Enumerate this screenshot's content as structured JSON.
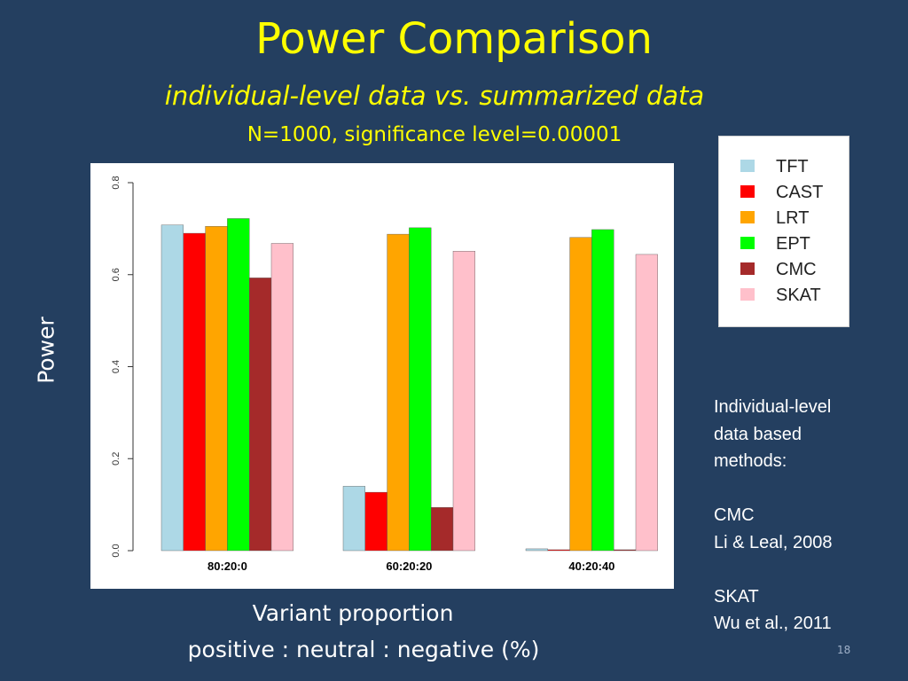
{
  "slide": {
    "title": "Power Comparison",
    "subtitle": "individual-level data vs. summarized data",
    "subtitle2": "N=1000, significance level=0.00001",
    "y_axis_title": "Power",
    "x_axis_title_line1": "Variant proportion",
    "x_axis_title_line2": "positive : neutral : negative (%)",
    "page_number": "18",
    "notes": [
      "Individual-level",
      "data based",
      "methods:",
      "",
      "CMC",
      "Li & Leal, 2008",
      "",
      "SKAT",
      "Wu et al., 2011"
    ]
  },
  "colors": {
    "background": "#243f60",
    "title": "#ffff00",
    "TFT": "#add8e6",
    "CAST": "#ff0000",
    "LRT": "#ffa500",
    "EPT": "#00ff00",
    "CMC": "#a52a2a",
    "SKAT": "#ffc0cb"
  },
  "chart_data": {
    "type": "bar",
    "categories": [
      "80:20:0",
      "60:20:20",
      "40:20:40"
    ],
    "series": [
      {
        "name": "TFT",
        "values": [
          0.708,
          0.14,
          0.004
        ]
      },
      {
        "name": "CAST",
        "values": [
          0.69,
          0.127,
          0.002
        ]
      },
      {
        "name": "LRT",
        "values": [
          0.705,
          0.688,
          0.681
        ]
      },
      {
        "name": "EPT",
        "values": [
          0.722,
          0.702,
          0.698
        ]
      },
      {
        "name": "CMC",
        "values": [
          0.593,
          0.094,
          0.002
        ]
      },
      {
        "name": "SKAT",
        "values": [
          0.668,
          0.651,
          0.644
        ]
      }
    ],
    "yticks": [
      "0.0",
      "0.2",
      "0.4",
      "0.6",
      "0.8"
    ],
    "ylim": [
      0,
      0.8
    ],
    "legend_position": "top-right outside plot"
  }
}
